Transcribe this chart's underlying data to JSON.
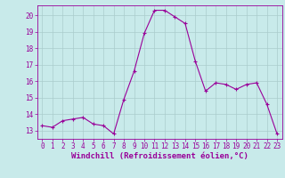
{
  "x": [
    0,
    1,
    2,
    3,
    4,
    5,
    6,
    7,
    8,
    9,
    10,
    11,
    12,
    13,
    14,
    15,
    16,
    17,
    18,
    19,
    20,
    21,
    22,
    23
  ],
  "y": [
    13.3,
    13.2,
    13.6,
    13.7,
    13.8,
    13.4,
    13.3,
    12.8,
    14.9,
    16.6,
    18.9,
    20.3,
    20.3,
    19.9,
    19.5,
    17.2,
    15.4,
    15.9,
    15.8,
    15.5,
    15.8,
    15.9,
    14.6,
    12.8
  ],
  "line_color": "#990099",
  "marker": "+",
  "marker_size": 3.5,
  "bg_color": "#c8eaea",
  "grid_color": "#aacccc",
  "xlabel": "Windchill (Refroidissement éolien,°C)",
  "xlabel_color": "#990099",
  "tick_color": "#990099",
  "ylim": [
    12.5,
    20.6
  ],
  "yticks": [
    13,
    14,
    15,
    16,
    17,
    18,
    19,
    20
  ],
  "xticks": [
    0,
    1,
    2,
    3,
    4,
    5,
    6,
    7,
    8,
    9,
    10,
    11,
    12,
    13,
    14,
    15,
    16,
    17,
    18,
    19,
    20,
    21,
    22,
    23
  ],
  "tick_fontsize": 5.5,
  "xlabel_fontsize": 6.5,
  "line_width": 0.8
}
